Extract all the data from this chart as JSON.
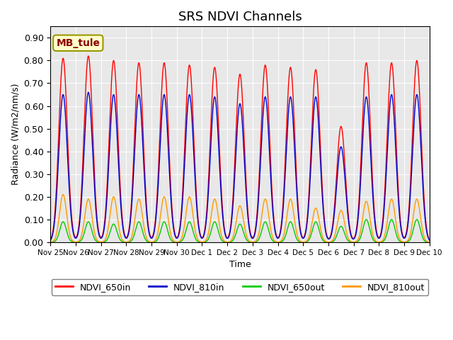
{
  "title": "SRS NDVI Channels",
  "xlabel": "Time",
  "ylabel": "Radiance (W/m2/nm/s)",
  "ylim": [
    0.0,
    0.95
  ],
  "annotation": "MB_tule",
  "legend": [
    "NDVI_650in",
    "NDVI_810in",
    "NDVI_650out",
    "NDVI_810out"
  ],
  "colors": [
    "#ff0000",
    "#0000cc",
    "#00cc00",
    "#ff9900"
  ],
  "background_color": "#e8e8e8",
  "peak_650in": [
    0.81,
    0.82,
    0.8,
    0.79,
    0.79,
    0.78,
    0.77,
    0.74,
    0.78,
    0.77,
    0.76,
    0.51,
    0.79,
    0.79,
    0.8
  ],
  "peak_810in": [
    0.65,
    0.66,
    0.65,
    0.65,
    0.65,
    0.65,
    0.64,
    0.61,
    0.64,
    0.64,
    0.64,
    0.42,
    0.64,
    0.65,
    0.65
  ],
  "peak_650out": [
    0.09,
    0.09,
    0.08,
    0.09,
    0.09,
    0.09,
    0.09,
    0.08,
    0.09,
    0.09,
    0.09,
    0.07,
    0.1,
    0.1,
    0.1
  ],
  "peak_810out": [
    0.21,
    0.19,
    0.2,
    0.19,
    0.2,
    0.2,
    0.19,
    0.16,
    0.19,
    0.19,
    0.15,
    0.14,
    0.18,
    0.19,
    0.19
  ],
  "tick_labels": [
    "Nov 25",
    "Nov 26",
    "Nov 27",
    "Nov 28",
    "Nov 29",
    "Nov 30",
    "Dec 1",
    "Dec 2",
    "Dec 3",
    "Dec 4",
    "Dec 5",
    "Dec 6",
    "Dec 7",
    "Dec 8",
    "Dec 9",
    "Dec 10"
  ],
  "n_days": 15
}
